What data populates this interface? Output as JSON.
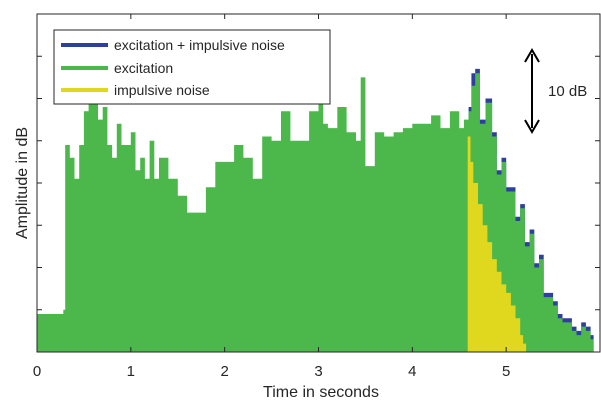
{
  "chart_data": {
    "type": "area",
    "title": "",
    "xlabel": "Time in seconds",
    "ylabel": "Amplitude in dB",
    "xlim": [
      0,
      6
    ],
    "xticks": [
      "0",
      "1",
      "2",
      "3",
      "4",
      "5"
    ],
    "grid": false,
    "legend_position": "top-left",
    "series": [
      {
        "name": "excitation + impulsive noise",
        "color": "#2e3f9e",
        "x": [
          4.6,
          4.63,
          4.67,
          4.72,
          4.78,
          4.85,
          4.9,
          4.95,
          5.0,
          5.05,
          5.1,
          5.15,
          5.2,
          5.25,
          5.3,
          5.35,
          5.4,
          5.45,
          5.5,
          5.55,
          5.6,
          5.65,
          5.7,
          5.75,
          5.8,
          5.85,
          5.9
        ],
        "values": [
          5.8,
          6.6,
          6.7,
          5.5,
          6.0,
          5.2,
          4.3,
          4.6,
          3.9,
          3.9,
          3.2,
          3.5,
          2.6,
          2.9,
          2.1,
          2.3,
          1.4,
          1.4,
          1.2,
          0.9,
          0.8,
          0.8,
          0.6,
          0.5,
          0.7,
          0.6,
          0.4
        ]
      },
      {
        "name": "excitation",
        "color": "#4cb84c",
        "x": [
          0.0,
          0.28,
          0.3,
          0.35,
          0.4,
          0.45,
          0.5,
          0.55,
          0.6,
          0.65,
          0.7,
          0.75,
          0.8,
          0.85,
          0.9,
          0.95,
          1.0,
          1.05,
          1.1,
          1.15,
          1.2,
          1.25,
          1.3,
          1.4,
          1.5,
          1.6,
          1.7,
          1.8,
          1.9,
          2.0,
          2.1,
          2.2,
          2.3,
          2.4,
          2.5,
          2.6,
          2.7,
          2.8,
          2.9,
          3.0,
          3.05,
          3.1,
          3.2,
          3.3,
          3.4,
          3.45,
          3.5,
          3.6,
          3.7,
          3.8,
          3.9,
          4.0,
          4.1,
          4.2,
          4.3,
          4.4,
          4.5,
          4.55,
          4.6,
          4.63,
          4.67,
          4.72,
          4.78,
          4.85,
          4.9,
          4.95,
          5.0,
          5.05,
          5.1,
          5.15,
          5.2,
          5.25,
          5.3,
          5.35,
          5.4,
          5.45,
          5.5,
          5.55,
          5.6,
          5.65,
          5.7,
          5.75,
          5.8,
          5.85,
          5.9
        ],
        "values": [
          0.9,
          1.0,
          4.9,
          4.6,
          4.1,
          4.9,
          5.7,
          6.1,
          6.2,
          5.5,
          5.8,
          4.9,
          4.6,
          5.4,
          4.9,
          4.9,
          5.2,
          4.3,
          4.6,
          4.1,
          5.0,
          4.1,
          4.6,
          4.1,
          3.7,
          3.3,
          3.3,
          3.9,
          4.5,
          4.5,
          4.9,
          4.6,
          4.1,
          5.1,
          5.0,
          5.7,
          5.0,
          5.0,
          5.7,
          5.9,
          5.4,
          5.3,
          5.8,
          5.2,
          5.0,
          6.5,
          4.4,
          5.2,
          5.1,
          5.2,
          5.3,
          5.4,
          5.4,
          5.6,
          5.3,
          5.7,
          5.3,
          5.5,
          5.7,
          6.3,
          6.6,
          5.4,
          5.9,
          5.1,
          4.2,
          4.5,
          3.8,
          3.8,
          3.1,
          3.4,
          2.5,
          2.8,
          2.0,
          2.2,
          1.3,
          1.3,
          1.1,
          0.8,
          0.7,
          0.7,
          0.5,
          0.4,
          0.6,
          0.5,
          0.3
        ]
      },
      {
        "name": "impulsive noise",
        "color": "#e0d81f",
        "x": [
          4.59,
          4.62,
          4.65,
          4.7,
          4.75,
          4.8,
          4.85,
          4.9,
          4.95,
          5.0,
          5.05,
          5.1,
          5.15,
          5.18
        ],
        "values": [
          5.1,
          4.5,
          4.0,
          3.5,
          3.0,
          2.6,
          2.2,
          1.9,
          1.6,
          1.4,
          1.1,
          0.8,
          0.4,
          0.2
        ]
      }
    ],
    "annotation": {
      "label": "10 dB",
      "type": "double-arrow",
      "span_units": 2.1
    },
    "colors": {
      "axes": "#262626",
      "background": "#ffffff"
    }
  }
}
